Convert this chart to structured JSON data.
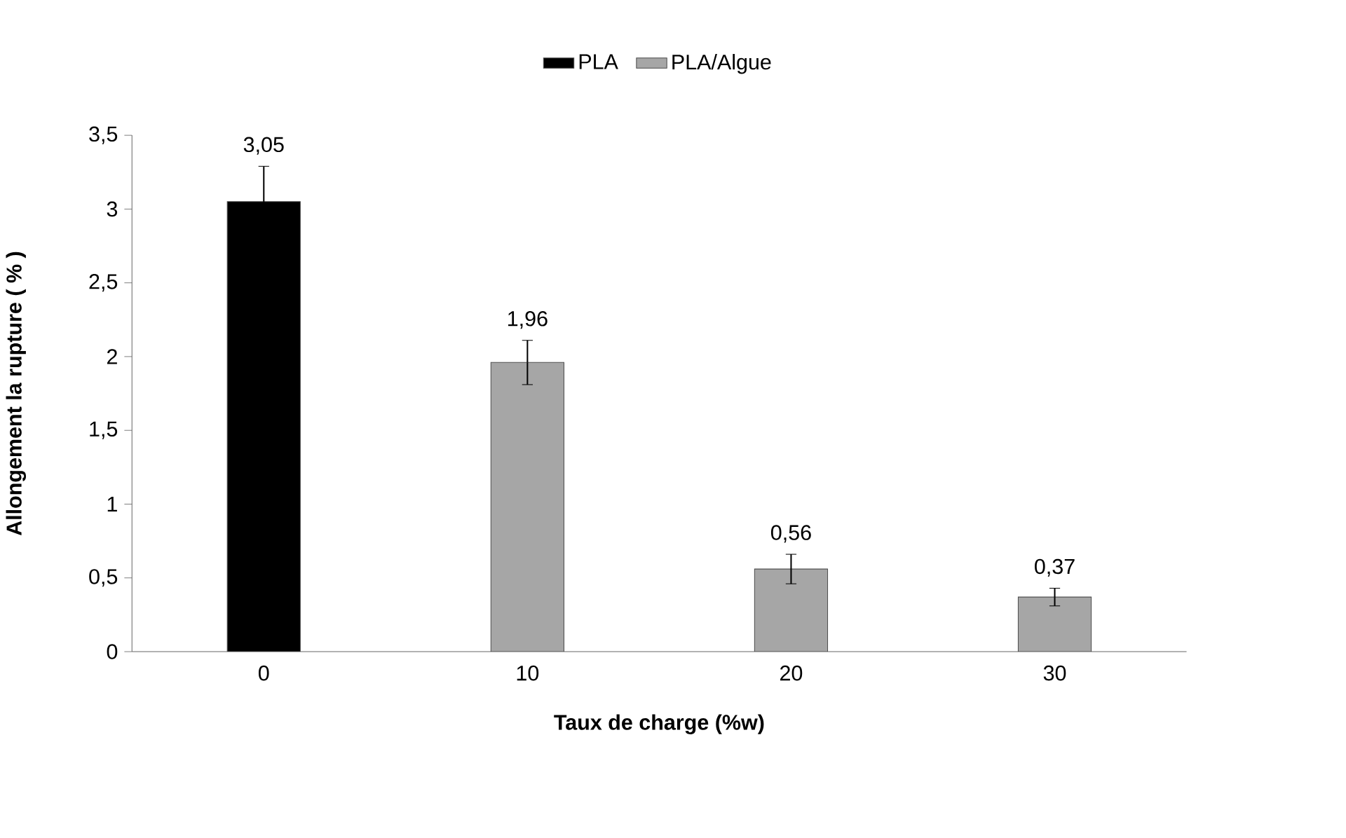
{
  "chart_data": {
    "type": "bar",
    "xlabel": "Taux de charge (%w)",
    "ylabel": "Allongement  la rupture ( % )",
    "categories": [
      "0",
      "10",
      "20",
      "30"
    ],
    "series": [
      {
        "name": "PLA",
        "color": "#000000",
        "values": [
          3.05,
          null,
          null,
          null
        ],
        "errors": [
          0.24,
          null,
          null,
          null
        ],
        "value_labels": [
          "3,05",
          null,
          null,
          null
        ]
      },
      {
        "name": "PLA/Algue",
        "color": "#a6a6a6",
        "values": [
          null,
          1.96,
          0.56,
          0.37
        ],
        "errors": [
          null,
          0.15,
          0.1,
          0.06
        ],
        "value_labels": [
          null,
          "1,96",
          "0,56",
          "0,37"
        ]
      }
    ],
    "ylim": [
      0,
      3.5
    ],
    "yticks": [
      0,
      {
        "value": 0.5,
        "label": "0,5"
      },
      1,
      {
        "value": 1.5,
        "label": "1,5"
      },
      2,
      {
        "value": 2.5,
        "label": "2,5"
      },
      3,
      {
        "value": 3.5,
        "label": "3,5"
      }
    ],
    "legend": "top",
    "grid": false
  }
}
